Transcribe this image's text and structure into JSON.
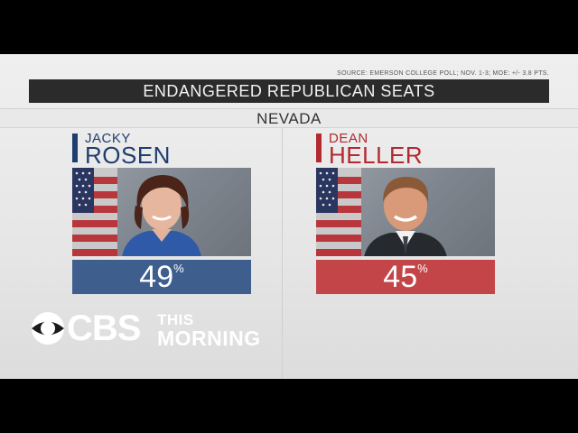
{
  "source": "SOURCE: EMERSON COLLEGE POLL; NOV. 1-3; MOE: +/- 3.8 PTS.",
  "title": "ENDANGERED REPUBLICAN SEATS",
  "state": "NEVADA",
  "candidates": [
    {
      "first": "JACKY",
      "last": "ROSEN",
      "percent": "49",
      "percent_sign": "%",
      "color": "#3e5e8e"
    },
    {
      "first": "DEAN",
      "last": "HELLER",
      "percent": "45",
      "percent_sign": "%",
      "color": "#c44548"
    }
  ],
  "logo": {
    "network": "CBS",
    "show_line1": "THIS",
    "show_line2": "MORNING"
  }
}
